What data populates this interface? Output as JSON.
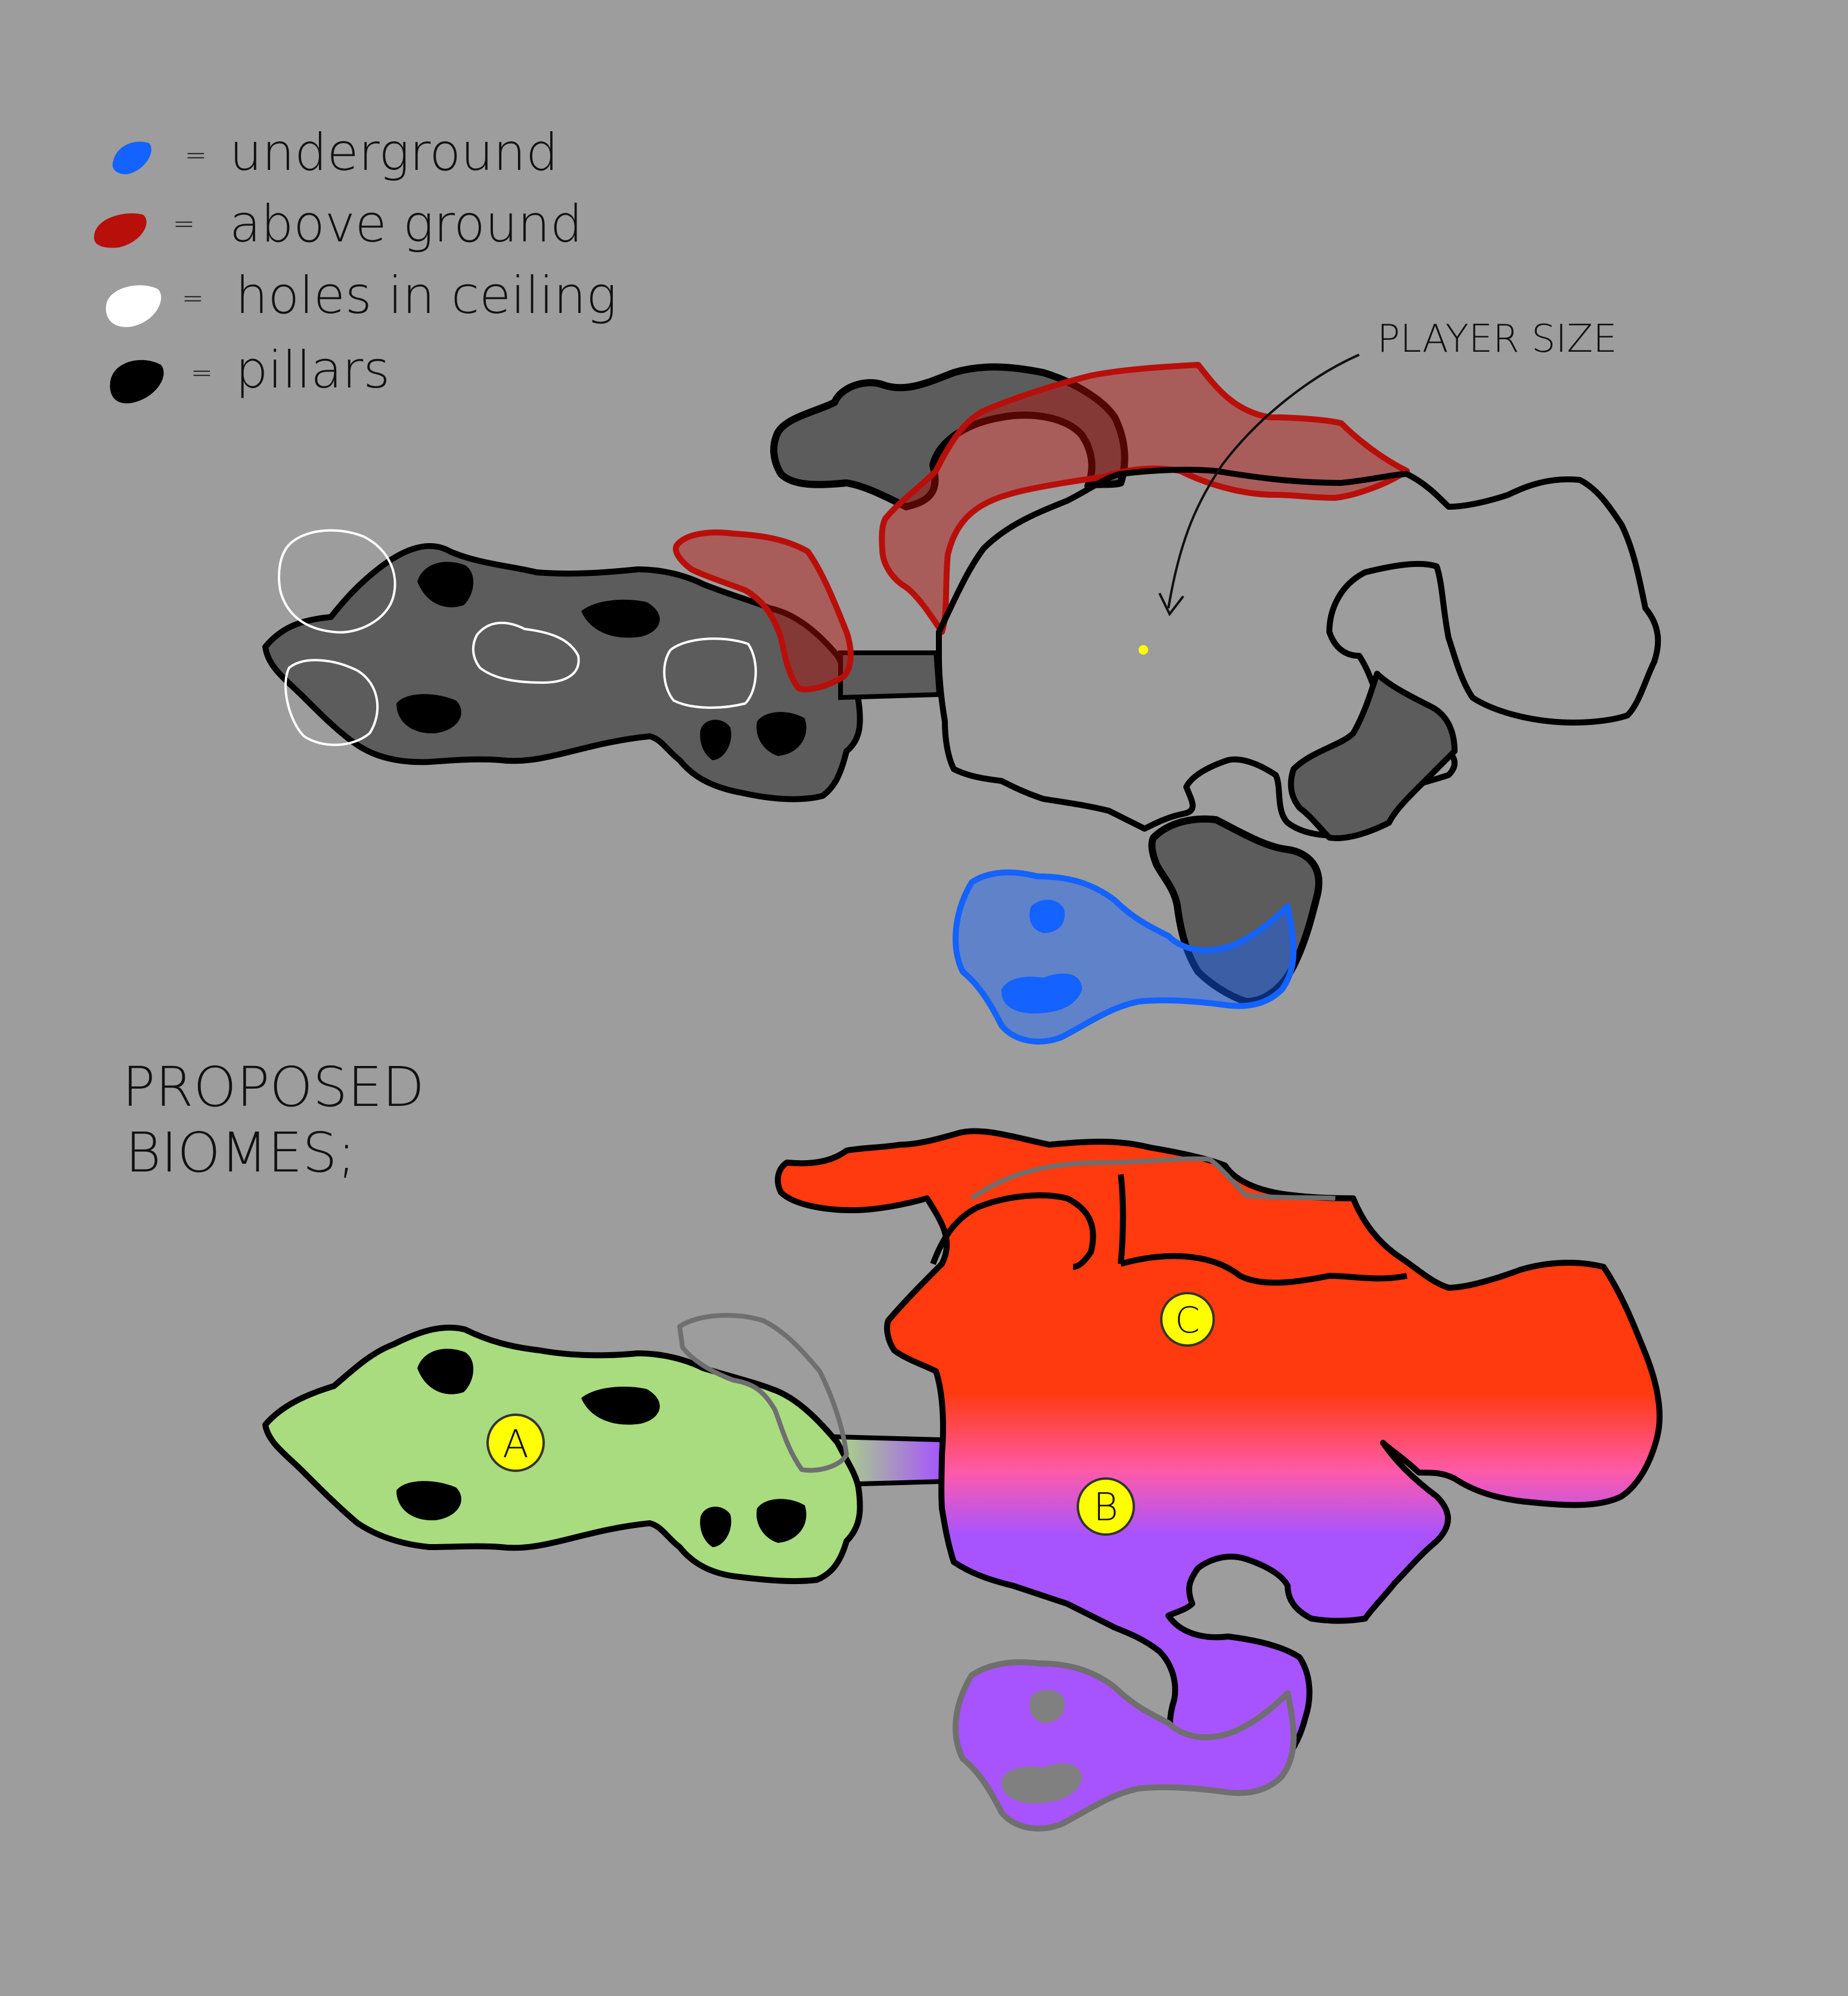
{
  "colors": {
    "background": "#9d9d9d",
    "underground": "#1462ff",
    "above_ground": "#b80f0a",
    "holes": "#ffffff",
    "pillars": "#000000",
    "dark_area": "#5c5c5c",
    "biome_a": "#a9db7f",
    "biome_b": "#a754ff",
    "biome_c": "#ff3a0e",
    "marker": "#ffff00"
  },
  "legend": [
    {
      "label": "underground",
      "color": "#1462ff"
    },
    {
      "label": "above ground",
      "color": "#b80f0a"
    },
    {
      "label": "holes in ceiling",
      "color": "#ffffff"
    },
    {
      "label": "pillars",
      "color": "#000000"
    }
  ],
  "legend_separator": "=",
  "annotation": {
    "player_size": "PLAYER SIZE"
  },
  "section": {
    "line1": "PROPOSED",
    "line2": "BIOMES;"
  },
  "biome_markers": [
    {
      "label": "A"
    },
    {
      "label": "B"
    },
    {
      "label": "C"
    }
  ]
}
